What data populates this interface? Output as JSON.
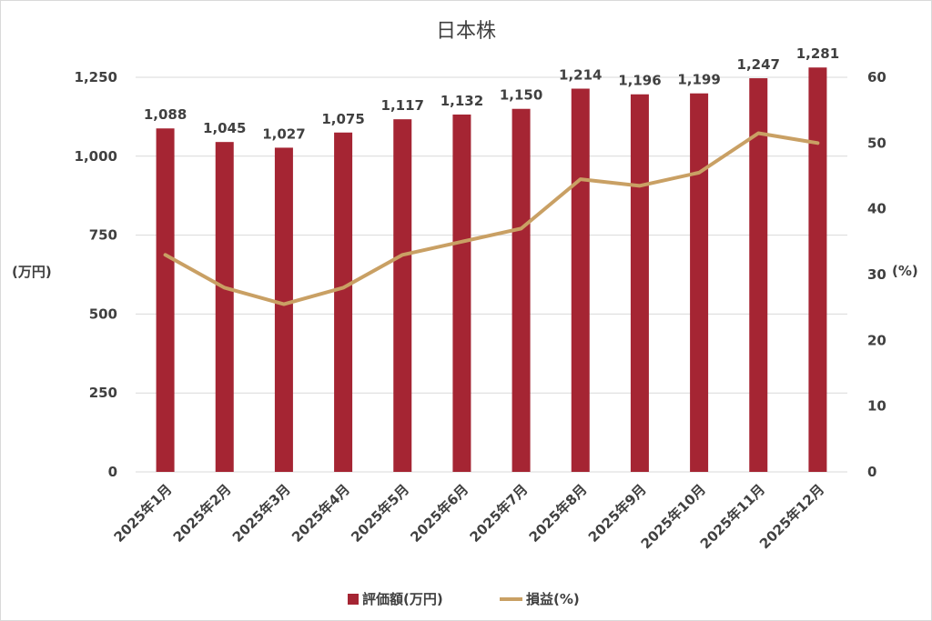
{
  "chart_data": {
    "type": "bar",
    "title": "日本株",
    "categories": [
      "2025年1月",
      "2025年2月",
      "2025年3月",
      "2025年4月",
      "2025年5月",
      "2025年6月",
      "2025年7月",
      "2025年8月",
      "2025年9月",
      "2025年10月",
      "2025年11月",
      "2025年12月"
    ],
    "series": [
      {
        "name": "評価額(万円)",
        "type": "bar",
        "axis": "left",
        "color": "#A52533",
        "values": [
          1088,
          1045,
          1027,
          1075,
          1117,
          1132,
          1150,
          1214,
          1196,
          1199,
          1247,
          1281
        ],
        "labels": [
          "1,088",
          "1,045",
          "1,027",
          "1,075",
          "1,117",
          "1,132",
          "1,150",
          "1,214",
          "1,196",
          "1,199",
          "1,247",
          "1,281"
        ]
      },
      {
        "name": "損益(%)",
        "type": "line",
        "axis": "right",
        "color": "#C9A064",
        "values": [
          33,
          28,
          25.5,
          28,
          33,
          35,
          37,
          44.5,
          43.5,
          45.5,
          51.5,
          50
        ]
      }
    ],
    "ylabel": "(万円)",
    "y2label": "(%)",
    "ylim": [
      0,
      1250
    ],
    "y2lim": [
      0,
      60
    ],
    "yticks": [
      "0",
      "250",
      "500",
      "750",
      "1,000",
      "1,250"
    ],
    "y2ticks": [
      "0",
      "10",
      "20",
      "30",
      "40",
      "50",
      "60"
    ],
    "grid": true,
    "legend": "bottom"
  }
}
